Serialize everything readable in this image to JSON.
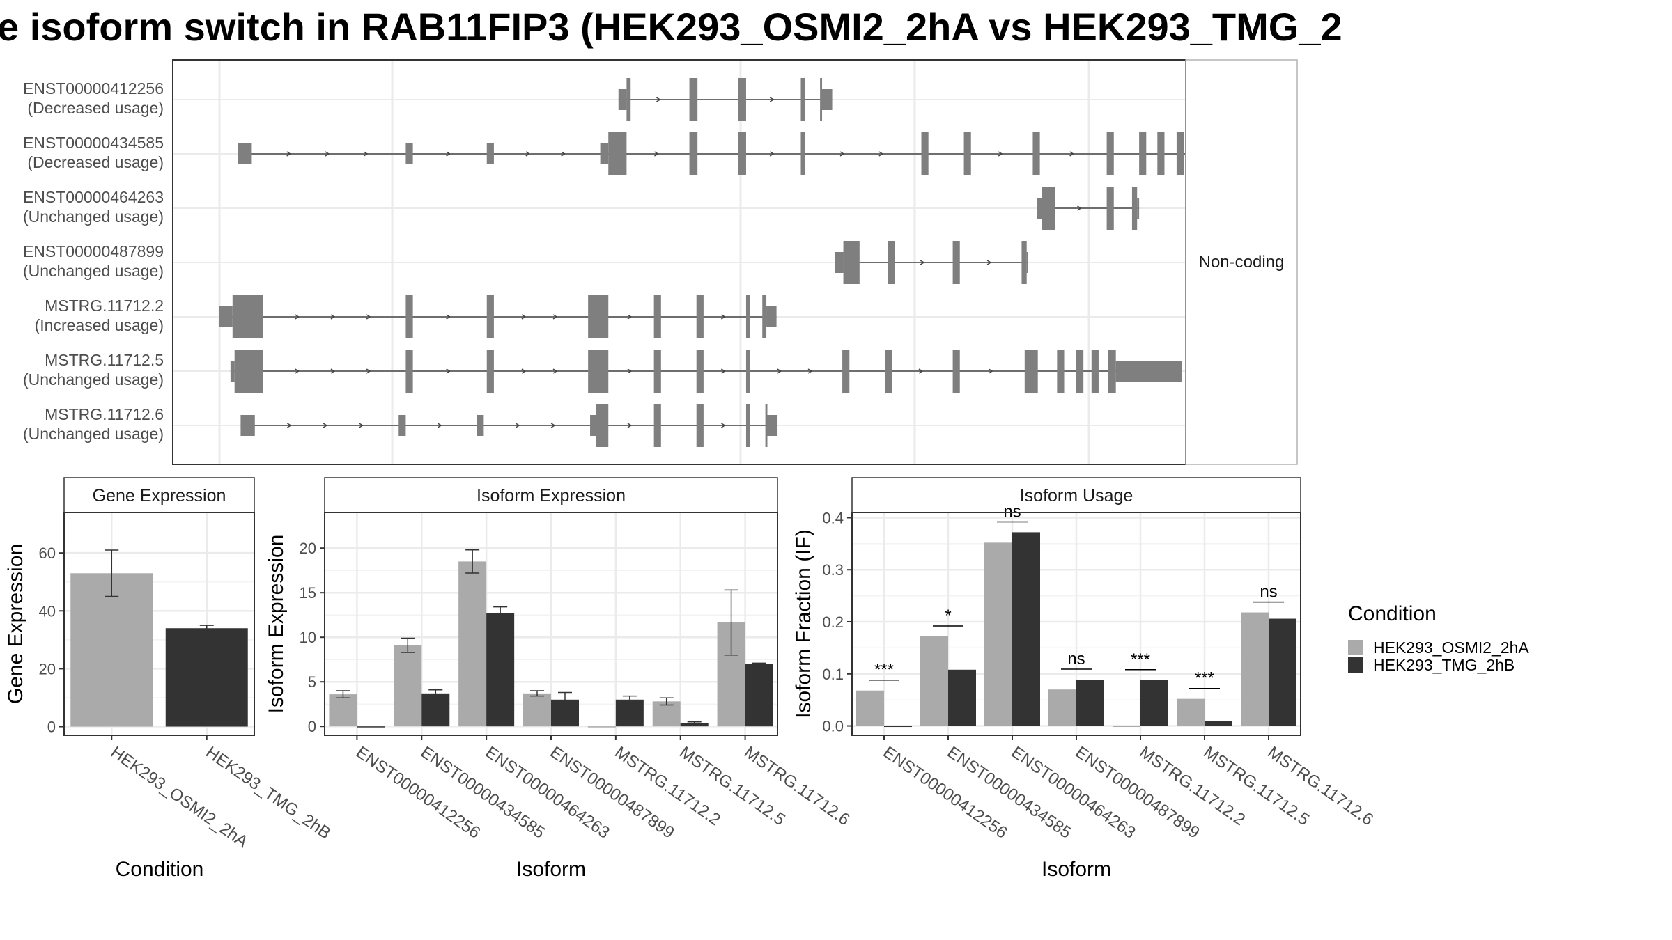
{
  "title": "e isoform switch in RAB11FIP3 (HEK293_OSMI2_2hA vs HEK293_TMG_2",
  "colors": {
    "condition_a": "#aaaaaa",
    "condition_b": "#333333",
    "structure": "#7f7f7f",
    "grid": "#ebebeb",
    "panel_border": "#333333"
  },
  "transcripts": {
    "coding_label": "Non-coding",
    "rows": [
      {
        "id": "ENST00000412256",
        "usage": "(Decreased usage)",
        "exons": [
          [
            0.44,
            0.448,
            "s"
          ],
          [
            0.448,
            0.452,
            "t"
          ],
          [
            0.51,
            0.518,
            "t"
          ],
          [
            0.558,
            0.566,
            "t"
          ],
          [
            0.62,
            0.624,
            "t"
          ],
          [
            0.639,
            0.641,
            "t"
          ],
          [
            0.641,
            0.651,
            "s"
          ]
        ]
      },
      {
        "id": "ENST00000434585",
        "usage": "(Decreased usage)",
        "exons": [
          [
            0.064,
            0.078,
            "s"
          ],
          [
            0.23,
            0.237,
            "s"
          ],
          [
            0.31,
            0.317,
            "s"
          ],
          [
            0.422,
            0.43,
            "s"
          ],
          [
            0.43,
            0.448,
            "t"
          ],
          [
            0.51,
            0.518,
            "t"
          ],
          [
            0.558,
            0.566,
            "t"
          ],
          [
            0.62,
            0.624,
            "t"
          ],
          [
            0.739,
            0.746,
            "t"
          ],
          [
            0.781,
            0.788,
            "t"
          ],
          [
            0.849,
            0.856,
            "t"
          ],
          [
            0.922,
            0.929,
            "t"
          ],
          [
            0.954,
            0.961,
            "t"
          ],
          [
            0.972,
            0.979,
            "t"
          ],
          [
            0.991,
            0.998,
            "t"
          ],
          [
            1.008,
            1.015,
            "t"
          ],
          [
            1.015,
            1.073,
            "s"
          ]
        ]
      },
      {
        "id": "ENST00000464263",
        "usage": "(Unchanged usage)",
        "exons": [
          [
            0.853,
            0.858,
            "s"
          ],
          [
            0.858,
            0.871,
            "t"
          ],
          [
            0.922,
            0.929,
            "t"
          ],
          [
            0.947,
            0.952,
            "t"
          ],
          [
            0.952,
            0.954,
            "s"
          ]
        ]
      },
      {
        "id": "ENST00000487899",
        "usage": "(Unchanged usage)",
        "exons": [
          [
            0.654,
            0.662,
            "s"
          ],
          [
            0.662,
            0.678,
            "t"
          ],
          [
            0.706,
            0.713,
            "t"
          ],
          [
            0.77,
            0.777,
            "t"
          ],
          [
            0.838,
            0.843,
            "t"
          ],
          [
            0.843,
            0.844,
            "s"
          ]
        ]
      },
      {
        "id": "MSTRG.11712.2",
        "usage": "(Increased usage)",
        "exons": [
          [
            0.046,
            0.059,
            "s"
          ],
          [
            0.059,
            0.089,
            "t"
          ],
          [
            0.23,
            0.237,
            "t"
          ],
          [
            0.31,
            0.317,
            "t"
          ],
          [
            0.41,
            0.43,
            "t"
          ],
          [
            0.475,
            0.482,
            "t"
          ],
          [
            0.517,
            0.524,
            "t"
          ],
          [
            0.566,
            0.57,
            "t"
          ],
          [
            0.582,
            0.586,
            "t"
          ],
          [
            0.586,
            0.596,
            "s"
          ]
        ]
      },
      {
        "id": "MSTRG.11712.5",
        "usage": "(Unchanged usage)",
        "exons": [
          [
            0.057,
            0.061,
            "s"
          ],
          [
            0.061,
            0.089,
            "t"
          ],
          [
            0.23,
            0.237,
            "t"
          ],
          [
            0.31,
            0.317,
            "t"
          ],
          [
            0.41,
            0.43,
            "t"
          ],
          [
            0.475,
            0.482,
            "t"
          ],
          [
            0.517,
            0.524,
            "t"
          ],
          [
            0.566,
            0.57,
            "t"
          ],
          [
            0.661,
            0.668,
            "t"
          ],
          [
            0.703,
            0.71,
            "t"
          ],
          [
            0.77,
            0.777,
            "t"
          ],
          [
            0.841,
            0.854,
            "t"
          ],
          [
            0.873,
            0.88,
            "t"
          ],
          [
            0.892,
            0.899,
            "t"
          ],
          [
            0.907,
            0.914,
            "t"
          ],
          [
            0.923,
            0.931,
            "t"
          ],
          [
            0.931,
            0.996,
            "s"
          ]
        ]
      },
      {
        "id": "MSTRG.11712.6",
        "usage": "(Unchanged usage)",
        "exons": [
          [
            0.067,
            0.081,
            "s"
          ],
          [
            0.223,
            0.23,
            "s"
          ],
          [
            0.3,
            0.307,
            "s"
          ],
          [
            0.412,
            0.418,
            "s"
          ],
          [
            0.418,
            0.43,
            "t"
          ],
          [
            0.475,
            0.482,
            "t"
          ],
          [
            0.517,
            0.524,
            "t"
          ],
          [
            0.566,
            0.57,
            "t"
          ],
          [
            0.585,
            0.587,
            "t"
          ],
          [
            0.587,
            0.597,
            "s"
          ]
        ]
      }
    ]
  },
  "chart_data": [
    {
      "type": "bar",
      "title": "Gene Expression",
      "xlabel": "Condition",
      "ylabel": "Gene Expression",
      "ylim": [
        -3,
        74
      ],
      "yticks": [
        0,
        20,
        40,
        60
      ],
      "categories": [
        "HEK293_OSMI2_2hA",
        "HEK293_TMG_2hB"
      ],
      "bars": [
        {
          "category": "HEK293_OSMI2_2hA",
          "condition": 0,
          "value": 53,
          "err": [
            45,
            61
          ]
        },
        {
          "category": "HEK293_TMG_2hB",
          "condition": 1,
          "value": 34,
          "err": [
            33,
            35
          ]
        }
      ]
    },
    {
      "type": "bar",
      "title": "Isoform Expression",
      "xlabel": "Isoform",
      "ylabel": "Isoform Expression",
      "ylim": [
        -1,
        24
      ],
      "yticks": [
        0,
        5,
        10,
        15,
        20
      ],
      "categories": [
        "ENST00000412256",
        "ENST00000434585",
        "ENST00000464263",
        "ENST00000487899",
        "MSTRG.11712.2",
        "MSTRG.11712.5",
        "MSTRG.11712.6"
      ],
      "series": [
        {
          "name": "HEK293_OSMI2_2hA",
          "values": [
            3.6,
            9.1,
            18.5,
            3.7,
            0,
            2.8,
            11.7
          ],
          "err": [
            [
              3.2,
              4.0
            ],
            [
              8.3,
              9.9
            ],
            [
              17.2,
              19.8
            ],
            [
              3.4,
              4.0
            ],
            [
              0,
              0
            ],
            [
              2.4,
              3.2
            ],
            [
              8.0,
              15.3
            ]
          ]
        },
        {
          "name": "HEK293_TMG_2hB",
          "values": [
            0,
            3.7,
            12.7,
            3.0,
            3.0,
            0.4,
            7.0
          ],
          "err": [
            [
              0,
              0
            ],
            [
              3.3,
              4.1
            ],
            [
              12.0,
              13.4
            ],
            [
              2.2,
              3.8
            ],
            [
              2.6,
              3.4
            ],
            [
              0.3,
              0.5
            ],
            [
              6.9,
              7.1
            ]
          ]
        }
      ]
    },
    {
      "type": "bar",
      "title": "Isoform Usage",
      "xlabel": "Isoform",
      "ylabel": "Isoform Fraction (IF)",
      "ylim": [
        -0.018,
        0.41
      ],
      "yticks": [
        "0.0",
        "0.1",
        "0.2",
        "0.3",
        "0.4"
      ],
      "categories": [
        "ENST00000412256",
        "ENST00000434585",
        "ENST00000464263",
        "ENST00000487899",
        "MSTRG.11712.2",
        "MSTRG.11712.5",
        "MSTRG.11712.6"
      ],
      "series": [
        {
          "name": "HEK293_OSMI2_2hA",
          "values": [
            0.068,
            0.172,
            0.352,
            0.07,
            0,
            0.052,
            0.218
          ]
        },
        {
          "name": "HEK293_TMG_2hB",
          "values": [
            0,
            0.108,
            0.372,
            0.089,
            0.088,
            0.01,
            0.206
          ]
        }
      ],
      "significance": [
        {
          "category": "ENST00000412256",
          "label": "***",
          "y": 0.088
        },
        {
          "category": "ENST00000434585",
          "label": "*",
          "y": 0.192
        },
        {
          "category": "ENST00000464263",
          "label": "ns",
          "y": 0.392
        },
        {
          "category": "ENST00000487899",
          "label": "ns",
          "y": 0.109
        },
        {
          "category": "MSTRG.11712.2",
          "label": "***",
          "y": 0.108
        },
        {
          "category": "MSTRG.11712.5",
          "label": "***",
          "y": 0.072
        },
        {
          "category": "MSTRG.11712.6",
          "label": "ns",
          "y": 0.238
        }
      ]
    }
  ],
  "legend": {
    "title": "Condition",
    "items": [
      "HEK293_OSMI2_2hA",
      "HEK293_TMG_2hB"
    ]
  }
}
